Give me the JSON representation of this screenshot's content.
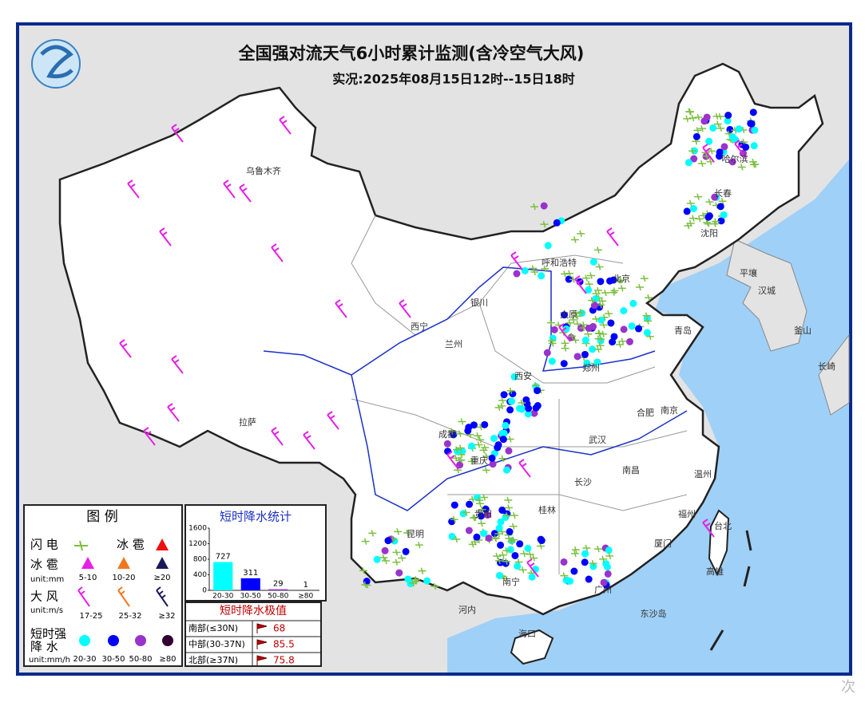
{
  "header": {
    "title": "全国强对流天气6小时累计监测(含冷空气大风)",
    "subtitle": "实况:2025年08月15日12时--15日18时"
  },
  "cities": [
    "乌鲁木齐",
    "哈尔滨",
    "长春",
    "沈阳",
    "呼和浩特",
    "北京",
    "银川",
    "西宁",
    "兰州",
    "太原",
    "青岛",
    "郑州",
    "西安",
    "合肥",
    "南京",
    "武汉",
    "成都",
    "重庆",
    "长沙",
    "南昌",
    "拉萨",
    "昆明",
    "贵阳",
    "桂林",
    "南宁",
    "广州",
    "福州",
    "温州",
    "厦门",
    "台北",
    "高雄",
    "海口",
    "平壤",
    "汉城",
    "釜山",
    "长崎",
    "河内",
    "东沙岛"
  ],
  "legend": {
    "title": "图 例",
    "lightning": "闪 电",
    "hail_event": "冰 雹",
    "hail": {
      "label": "冰 雹",
      "unit": "unit:mm",
      "levels": [
        "5-10",
        "10-20",
        "≥20"
      ]
    },
    "wind": {
      "label": "大 风",
      "unit": "unit:m/s",
      "levels": [
        "17-25",
        "25-32",
        "≥32"
      ]
    },
    "rain": {
      "label": [
        "短时强",
        "降 水"
      ],
      "unit": "unit:mm/h",
      "levels": [
        "20-30",
        "30-50",
        "50-80",
        "≥80"
      ]
    }
  },
  "chart_data": {
    "type": "bar",
    "title": "短时降水统计",
    "categories": [
      "20-30",
      "30-50",
      "50-80",
      "≥80"
    ],
    "values": [
      727,
      311,
      29,
      1
    ],
    "colors": [
      "#00ffff",
      "#0000ff",
      "#9933cc",
      "#330033"
    ],
    "ylim": [
      0,
      1600
    ],
    "yticks": [
      0,
      400,
      800,
      1200,
      1600
    ]
  },
  "extremes": {
    "title": "短时降水极值",
    "rows": [
      [
        "南部(≤30N)",
        68
      ],
      [
        "中部(30-37N)",
        85.5
      ],
      [
        "北部(≥37N)",
        75.8
      ]
    ]
  },
  "watermark": "次"
}
